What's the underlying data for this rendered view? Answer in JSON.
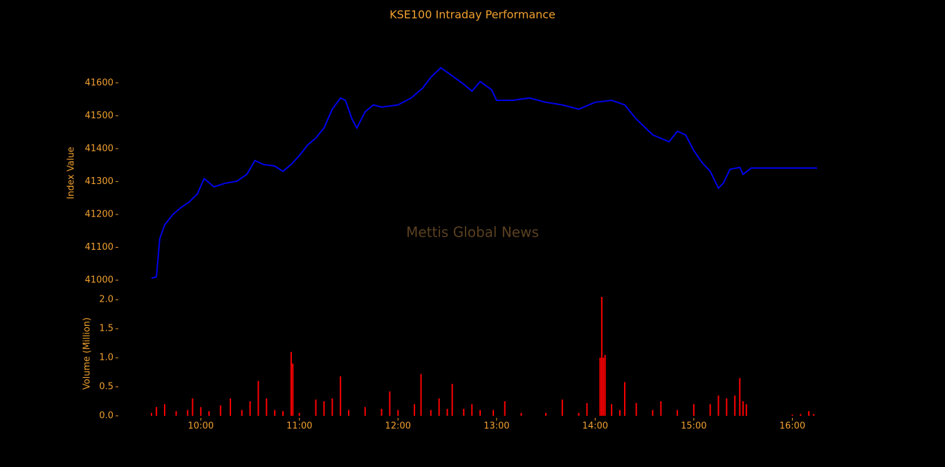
{
  "chart_data": [
    {
      "type": "line",
      "title": "KSE100 Intraday Performance",
      "ylabel": "Index Value",
      "annotation": "Mettis Global News",
      "color": "#0000ee",
      "xlim": [
        "09:30",
        "16:15"
      ],
      "ylim": [
        41000,
        41650
      ],
      "yticks": [
        41000,
        41100,
        41200,
        41300,
        41400,
        41500,
        41600
      ],
      "x": [
        "09:30",
        "09:33",
        "09:35",
        "09:38",
        "09:43",
        "09:48",
        "09:53",
        "09:58",
        "10:02",
        "10:08",
        "10:15",
        "10:22",
        "10:28",
        "10:33",
        "10:38",
        "10:45",
        "10:50",
        "10:55",
        "11:00",
        "11:05",
        "11:10",
        "11:15",
        "11:20",
        "11:25",
        "11:28",
        "11:32",
        "11:35",
        "11:40",
        "11:45",
        "11:50",
        "12:00",
        "12:08",
        "12:15",
        "12:20",
        "12:26",
        "12:32",
        "12:40",
        "12:45",
        "12:50",
        "12:57",
        "13:00",
        "13:10",
        "13:20",
        "13:30",
        "13:40",
        "13:50",
        "14:00",
        "14:10",
        "14:18",
        "14:25",
        "14:35",
        "14:45",
        "14:50",
        "14:55",
        "15:00",
        "15:05",
        "15:10",
        "15:15",
        "15:18",
        "15:22",
        "15:28",
        "15:30",
        "15:35",
        "16:15"
      ],
      "values": [
        41006,
        41010,
        41126,
        41168,
        41200,
        41221,
        41238,
        41263,
        41309,
        41284,
        41295,
        41301,
        41322,
        41364,
        41352,
        41347,
        41331,
        41352,
        41379,
        41411,
        41432,
        41463,
        41520,
        41554,
        41547,
        41490,
        41463,
        41512,
        41533,
        41526,
        41533,
        41554,
        41584,
        41617,
        41646,
        41625,
        41596,
        41575,
        41604,
        41579,
        41547,
        41547,
        41554,
        41541,
        41533,
        41520,
        41541,
        41547,
        41533,
        41490,
        41442,
        41421,
        41453,
        41442,
        41394,
        41358,
        41331,
        41280,
        41295,
        41337,
        41343,
        41322,
        41341,
        41341
      ]
    },
    {
      "type": "bar",
      "ylabel": "Volume (Million)",
      "color": "#ff0000",
      "xlim": [
        "09:30",
        "16:15"
      ],
      "ylim": [
        0,
        2.05
      ],
      "yticks": [
        {
          "value": 0,
          "label": "0.0"
        },
        0.5,
        {
          "value": 1,
          "label": "1.0"
        },
        1.5,
        {
          "value": 2,
          "label": "2.0"
        }
      ],
      "xticks": [
        "10:00",
        "11:00",
        "12:00",
        "13:00",
        "14:00",
        "15:00",
        "16:00"
      ],
      "x": [
        "09:30",
        "09:33",
        "09:38",
        "09:45",
        "09:52",
        "09:55",
        "10:00",
        "10:05",
        "10:12",
        "10:18",
        "10:25",
        "10:30",
        "10:35",
        "10:40",
        "10:45",
        "10:50",
        "10:55",
        "10:56",
        "11:00",
        "11:10",
        "11:15",
        "11:20",
        "11:25",
        "11:30",
        "11:40",
        "11:50",
        "11:55",
        "12:00",
        "12:10",
        "12:14",
        "12:20",
        "12:25",
        "12:30",
        "12:33",
        "12:40",
        "12:45",
        "12:50",
        "12:58",
        "13:05",
        "13:15",
        "13:30",
        "13:40",
        "13:50",
        "13:55",
        "14:03",
        "14:04",
        "14:05",
        "14:06",
        "14:10",
        "14:15",
        "14:18",
        "14:25",
        "14:35",
        "14:40",
        "14:50",
        "15:00",
        "15:10",
        "15:15",
        "15:20",
        "15:25",
        "15:28",
        "15:30",
        "15:32",
        "16:00",
        "16:05",
        "16:10",
        "16:13"
      ],
      "values": [
        0.05,
        0.15,
        0.2,
        0.08,
        0.1,
        0.3,
        0.15,
        0.08,
        0.18,
        0.3,
        0.1,
        0.25,
        0.6,
        0.3,
        0.1,
        0.08,
        1.1,
        0.9,
        0.05,
        0.28,
        0.25,
        0.3,
        0.68,
        0.1,
        0.15,
        0.12,
        0.42,
        0.1,
        0.2,
        0.72,
        0.1,
        0.3,
        0.12,
        0.55,
        0.12,
        0.2,
        0.1,
        0.1,
        0.25,
        0.05,
        0.05,
        0.28,
        0.05,
        0.22,
        1.0,
        2.05,
        1.0,
        1.05,
        0.2,
        0.1,
        0.58,
        0.22,
        0.1,
        0.25,
        0.1,
        0.2,
        0.2,
        0.35,
        0.3,
        0.35,
        0.65,
        0.25,
        0.2,
        0.02,
        0.03,
        0.08,
        0.03
      ]
    }
  ]
}
